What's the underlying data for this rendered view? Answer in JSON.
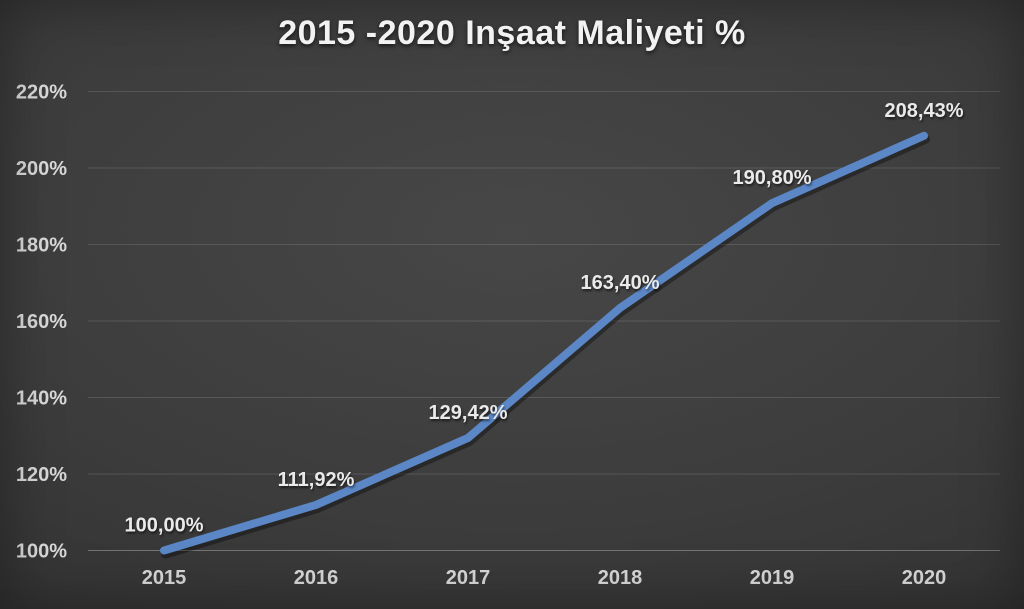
{
  "page": {
    "background_center": "#474747",
    "background_edge": "#2b2b2b"
  },
  "chart_data": {
    "type": "line",
    "title": "2015 -2020 Inşaat Maliyeti %",
    "categories": [
      "2015",
      "2016",
      "2017",
      "2018",
      "2019",
      "2020"
    ],
    "values": [
      100.0,
      111.92,
      129.42,
      163.4,
      190.8,
      208.43
    ],
    "data_labels": [
      "100,00%",
      "111,92%",
      "129,42%",
      "163,40%",
      "190,80%",
      "208,43%"
    ],
    "y_tick_labels": [
      "100%",
      "120%",
      "140%",
      "160%",
      "180%",
      "200%",
      "220%"
    ],
    "y_tick_values": [
      100,
      120,
      140,
      160,
      180,
      200,
      220
    ],
    "ylim": [
      100,
      220
    ],
    "grid": true,
    "legend": "none",
    "xlabel": "",
    "ylabel": "",
    "colors": {
      "line": "#5b87c6",
      "line_shadow": "rgba(0,0,0,0.35)",
      "gridline": "rgba(255,255,255,0.13)",
      "axis_line": "rgba(255,255,255,0.30)",
      "tick_text": "#d9d9d9",
      "data_label_text": "#eaeaea",
      "title_text": "#f2f2f2"
    }
  }
}
